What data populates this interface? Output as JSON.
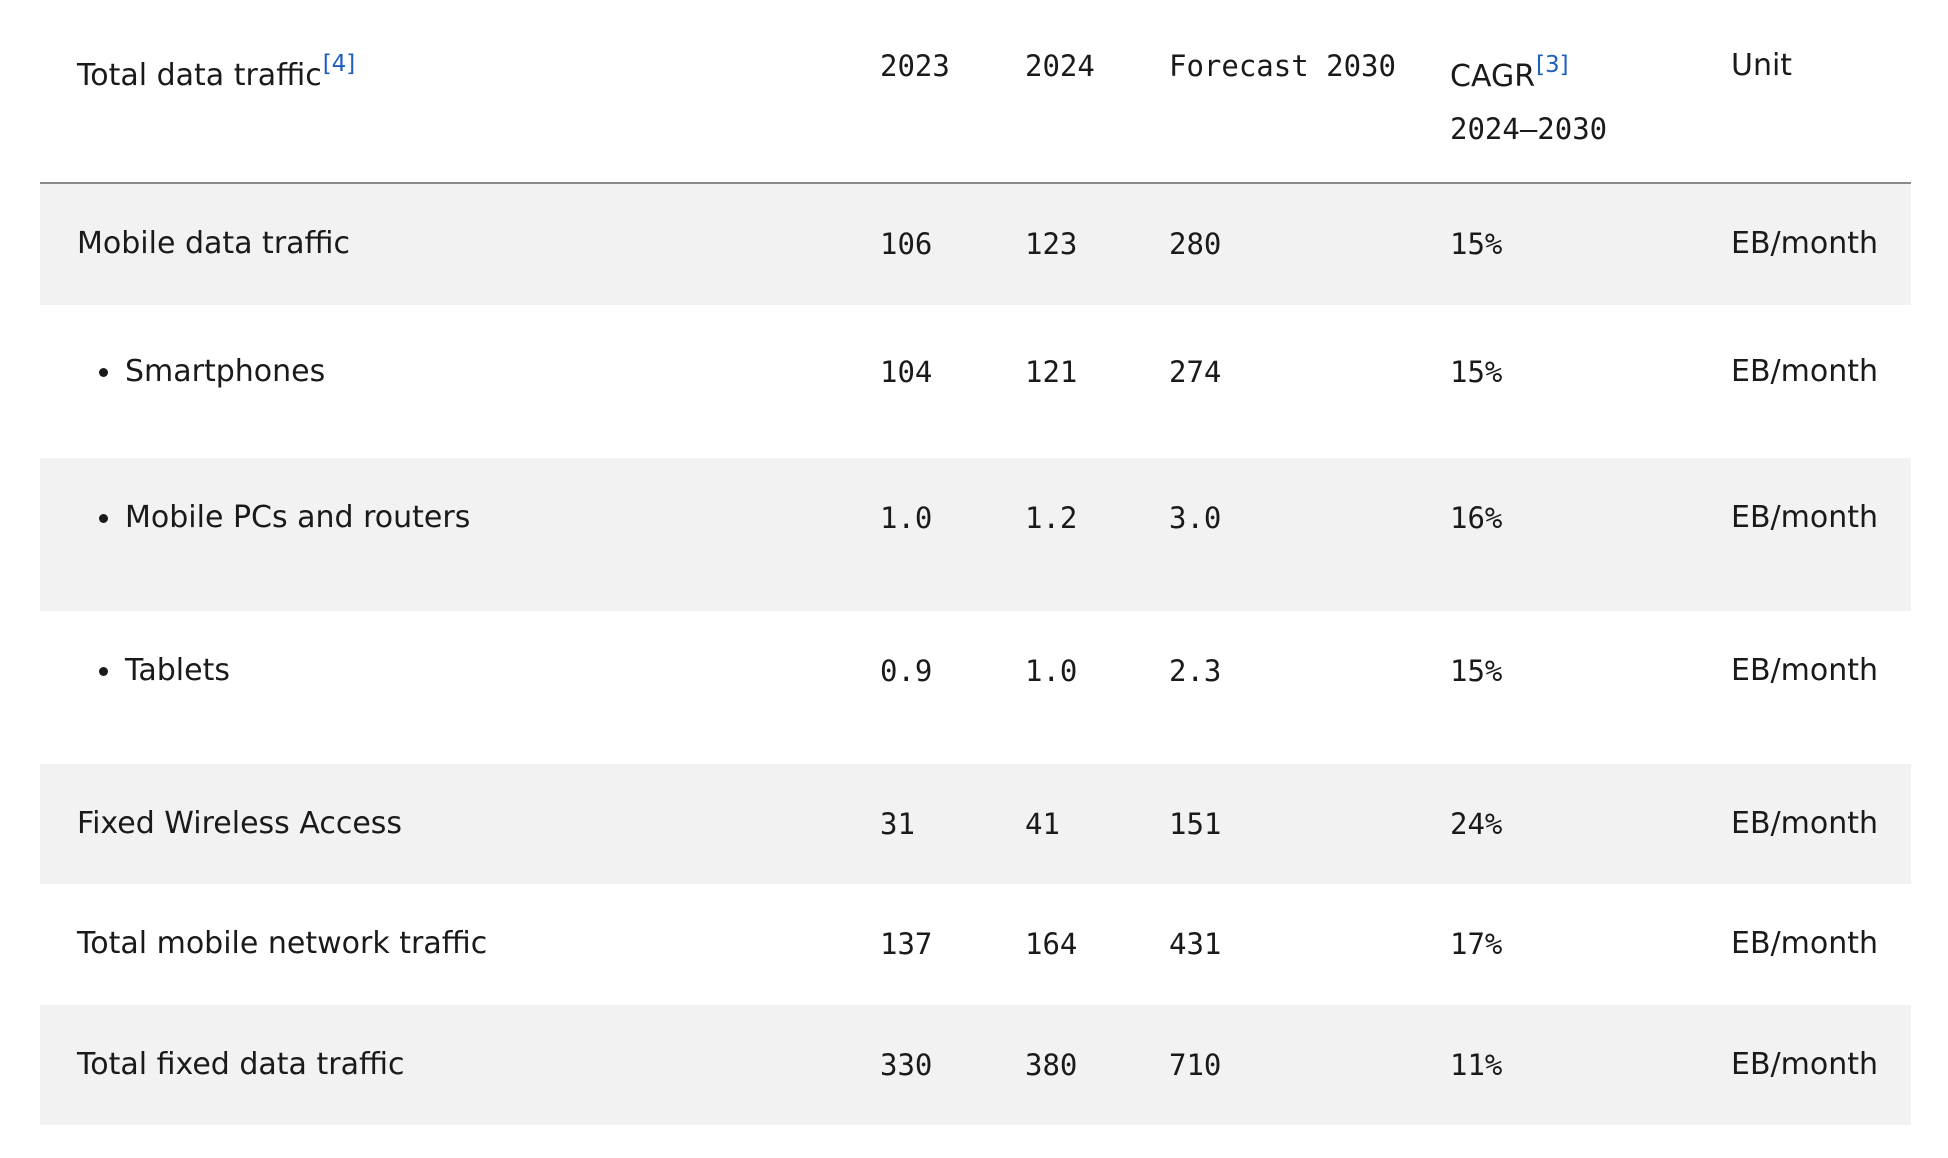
{
  "header": {
    "label": "Total data traffic",
    "label_ref": "[4]",
    "col_2023": "2023",
    "col_2024": "2024",
    "col_2030": "Forecast 2030",
    "col_cagr": "CAGR",
    "col_cagr_ref": "[3]",
    "col_cagr_period": "2024–2030",
    "col_unit": "Unit"
  },
  "rows": [
    {
      "label": "Mobile data traffic",
      "v2023": "106",
      "v2024": "123",
      "v2030": "280",
      "cagr": "15%",
      "unit": "EB/month"
    },
    {
      "label": "Smartphones",
      "v2023": "104",
      "v2024": "121",
      "v2030": "274",
      "cagr": "15%",
      "unit": "EB/month"
    },
    {
      "label": "Mobile PCs and routers",
      "v2023": "1.0",
      "v2024": "1.2",
      "v2030": "3.0",
      "cagr": "16%",
      "unit": "EB/month"
    },
    {
      "label": "Tablets",
      "v2023": "0.9",
      "v2024": "1.0",
      "v2030": "2.3",
      "cagr": "15%",
      "unit": "EB/month"
    },
    {
      "label": "Fixed Wireless Access",
      "v2023": "31",
      "v2024": "41",
      "v2030": "151",
      "cagr": "24%",
      "unit": "EB/month"
    },
    {
      "label": "Total mobile network traffic",
      "v2023": "137",
      "v2024": "164",
      "v2030": "431",
      "cagr": "17%",
      "unit": "EB/month"
    },
    {
      "label": "Total fixed data traffic",
      "v2023": "330",
      "v2024": "380",
      "v2030": "710",
      "cagr": "11%",
      "unit": "EB/month"
    }
  ]
}
